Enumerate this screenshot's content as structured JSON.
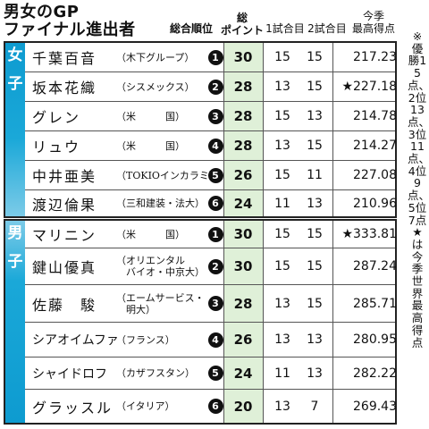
{
  "title": {
    "line1": "男女のGP",
    "line2": "ファイナル進出者"
  },
  "headers": {
    "rank": "総合順位",
    "points_line1": "総",
    "points_line2": "ポイント",
    "seg1": "1試合目",
    "seg2": "2試合目",
    "best_line1": "今季",
    "best_line2": "最高得点"
  },
  "note": "※優勝15点、2位13点、3位11点、4位9点、5位7点★は今季世界最高得点",
  "sections": [
    {
      "label": "女子",
      "label_chars": [
        "女",
        "子"
      ],
      "rows": [
        {
          "name": "千葉百音",
          "affiliation": "（木下グループ）",
          "rank": "1",
          "points": "30",
          "seg1": "15",
          "seg2": "15",
          "best": "217.23"
        },
        {
          "name": "坂本花織",
          "affiliation": "（シスメックス）",
          "rank": "2",
          "points": "28",
          "seg1": "13",
          "seg2": "15",
          "best": "★227.18"
        },
        {
          "name": "グレン",
          "affiliation": "（米　　　国）",
          "rank": "3",
          "points": "28",
          "seg1": "15",
          "seg2": "13",
          "best": "214.78"
        },
        {
          "name": "リュウ",
          "affiliation": "（米　　　国）",
          "rank": "4",
          "points": "28",
          "seg1": "13",
          "seg2": "15",
          "best": "214.27"
        },
        {
          "name": "中井亜美",
          "affiliation": "（TOKIOインカラミ）",
          "rank": "5",
          "points": "26",
          "seg1": "15",
          "seg2": "11",
          "best": "227.08"
        },
        {
          "name": "渡辺倫果",
          "affiliation": "（三和建装・法大）",
          "rank": "6",
          "points": "24",
          "seg1": "11",
          "seg2": "13",
          "best": "210.96"
        }
      ]
    },
    {
      "label": "男子",
      "label_chars": [
        "男",
        "子"
      ],
      "rows": [
        {
          "name": "マリニン",
          "affiliation": "（米　　　国）",
          "rank": "1",
          "points": "30",
          "seg1": "15",
          "seg2": "15",
          "best": "★333.81"
        },
        {
          "name": "鍵山優真",
          "affiliation": "（オリエンタル\n　バイオ・中京大）",
          "rank": "2",
          "points": "30",
          "seg1": "15",
          "seg2": "15",
          "best": "287.24"
        },
        {
          "name": "佐藤　駿",
          "affiliation": "（エームサービス・\n　明大）",
          "rank": "3",
          "points": "28",
          "seg1": "13",
          "seg2": "15",
          "best": "285.71"
        },
        {
          "name": "シアオイムファ",
          "affiliation": "（フランス）",
          "rank": "4",
          "points": "26",
          "seg1": "13",
          "seg2": "13",
          "best": "280.95"
        },
        {
          "name": "シャイドロフ",
          "affiliation": "（カザフスタン）",
          "rank": "5",
          "points": "24",
          "seg1": "11",
          "seg2": "13",
          "best": "282.22"
        },
        {
          "name": "グラッスル",
          "affiliation": "（イタリア）",
          "rank": "6",
          "points": "20",
          "seg1": "13",
          "seg2": "7",
          "best": "269.43"
        }
      ]
    }
  ]
}
